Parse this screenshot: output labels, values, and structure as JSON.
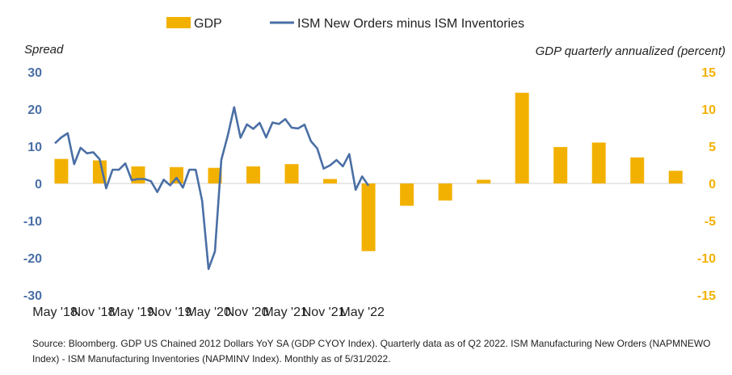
{
  "chart_data": {
    "type": "bar+line",
    "legend": [
      "GDP",
      "ISM New Orders minus ISM Inventories"
    ],
    "left_axis_title": "Spread",
    "right_axis_title": "GDP quarterly annualized (percent)",
    "left_ylim": [
      -30,
      30
    ],
    "left_ticks": [
      -30,
      -20,
      -10,
      0,
      10,
      20,
      30
    ],
    "right_ylim": [
      -15,
      15
    ],
    "right_ticks": [
      -15,
      -10,
      -5,
      0,
      5,
      10,
      15
    ],
    "x_labels": [
      "May '18",
      "Nov '18",
      "May '19",
      "Nov '19",
      "May '20",
      "Nov '20",
      "May '21",
      "Nov '21",
      "May '22"
    ],
    "colors": {
      "bar": "#f2b100",
      "line": "#4a6fa5",
      "left_axis": "#4a6fa5",
      "right_axis": "#f2b100"
    },
    "gdp_series": {
      "name": "GDP",
      "months": [
        1,
        7,
        13,
        19,
        25,
        31,
        37,
        43,
        49,
        55,
        61,
        67,
        73,
        79,
        85,
        91,
        97
      ],
      "values": [
        3.3,
        3.1,
        2.3,
        2.2,
        2.1,
        2.3,
        2.6,
        0.6,
        -9.1,
        -3.0,
        -2.3,
        0.5,
        12.2,
        4.9,
        5.5,
        3.5,
        1.7
      ]
    },
    "ism_series": {
      "name": "ISM New Orders minus ISM Inventories",
      "values": [
        10.8,
        12.4,
        13.5,
        5.2,
        9.6,
        8.1,
        8.4,
        6.5,
        -1.3,
        3.7,
        3.7,
        5.4,
        0.9,
        1.2,
        1.2,
        0.6,
        -2.3,
        1.0,
        -0.5,
        1.5,
        -1.1,
        3.7,
        3.7,
        -4.7,
        -23.0,
        -18.3,
        6.3,
        12.8,
        20.5,
        12.3,
        15.9,
        14.7,
        16.3,
        12.4,
        16.4,
        16.0,
        17.3,
        15.0,
        14.8,
        15.8,
        11.4,
        9.4,
        4.0,
        4.9,
        6.3,
        4.6,
        7.9,
        -1.7,
        1.9,
        -0.6
      ]
    }
  },
  "source_text": "Source: Bloomberg. GDP US Chained 2012 Dollars YoY SA (GDP CYOY Index).  Quarterly data as of Q2 2022.  ISM Manufacturing New Orders (NAPMNEWO Index) - ISM Manufacturing Inventories (NAPMINV Index).  Monthly as of 5/31/2022."
}
